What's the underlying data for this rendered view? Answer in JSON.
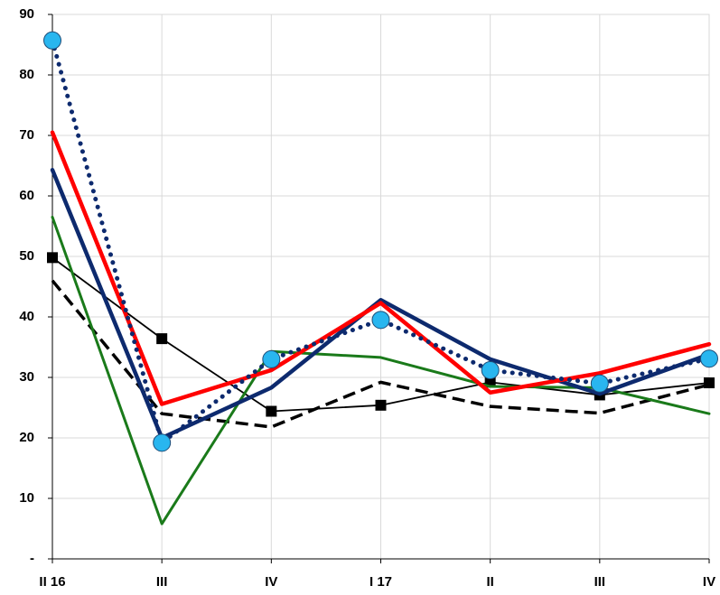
{
  "chart_data": {
    "type": "line",
    "categories": [
      "II 16",
      "III",
      "IV",
      "I 17",
      "II",
      "III",
      "IV"
    ],
    "ylim": [
      0,
      90
    ],
    "yticks": [
      {
        "value": 0,
        "label": "-"
      },
      10,
      20,
      30,
      40,
      50,
      60,
      70,
      80,
      90
    ],
    "grid": true,
    "series": [
      {
        "color": "#000000",
        "line_style": "dashed",
        "marker": "none",
        "values": [
          46,
          24,
          21.8,
          29.2,
          25.2,
          24.1,
          28.8
        ]
      },
      {
        "color": "#000000",
        "line_style": "thin",
        "marker": "square",
        "values": [
          49.8,
          36.4,
          24.4,
          25.4,
          29.2,
          27.1,
          29.1
        ]
      },
      {
        "color": "#1a7a1a",
        "line_style": "solid",
        "marker": "none",
        "values": [
          56.5,
          5.8,
          34.3,
          33.3,
          28.5,
          28.3,
          24
        ]
      },
      {
        "color": "#0d2a6e",
        "line_style": "thick",
        "marker": "none",
        "values": [
          64.3,
          20,
          28.3,
          42.8,
          33,
          27.3,
          33.8
        ]
      },
      {
        "color": "#ff0000",
        "line_style": "thick",
        "marker": "none",
        "values": [
          70.5,
          25.6,
          31.2,
          42.3,
          27.5,
          30.7,
          35.5
        ]
      },
      {
        "color": "#0d2a6e",
        "line_style": "dotted",
        "marker": "circle",
        "marker_color": "#29b6ef",
        "values": [
          85.7,
          19.2,
          33,
          39.5,
          31.2,
          29,
          33.1
        ]
      }
    ]
  }
}
